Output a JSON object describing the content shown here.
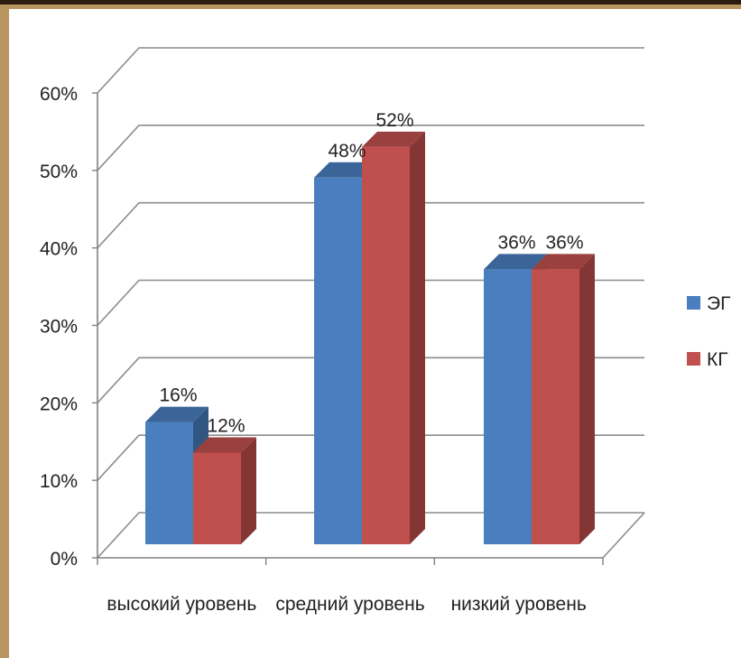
{
  "chart_data": {
    "type": "bar",
    "title": "",
    "xlabel": "",
    "ylabel": "",
    "categories": [
      "высокий уровень",
      "средний уровень",
      "низкий уровень"
    ],
    "series": [
      {
        "name": "ЭГ",
        "values": [
          16,
          48,
          36
        ],
        "color": "#4a7ebf"
      },
      {
        "name": "КГ",
        "values": [
          12,
          52,
          36
        ],
        "color": "#c0504d"
      }
    ],
    "data_labels": [
      [
        "16%",
        "48%",
        "36%"
      ],
      [
        "12%",
        "52%",
        "36%"
      ]
    ],
    "ylim": [
      0,
      60
    ],
    "yticks": [
      0,
      10,
      20,
      30,
      40,
      50,
      60
    ],
    "ytick_labels": [
      "0%",
      "10%",
      "20%",
      "30%",
      "40%",
      "50%",
      "60%"
    ],
    "grid": true,
    "legend_position": "right",
    "style": "3d-clustered-column"
  },
  "colors": {
    "frame": "#b8945e",
    "frame_top": "#2a1c10",
    "grid": "#8c8c8c",
    "axis": "#808080"
  }
}
